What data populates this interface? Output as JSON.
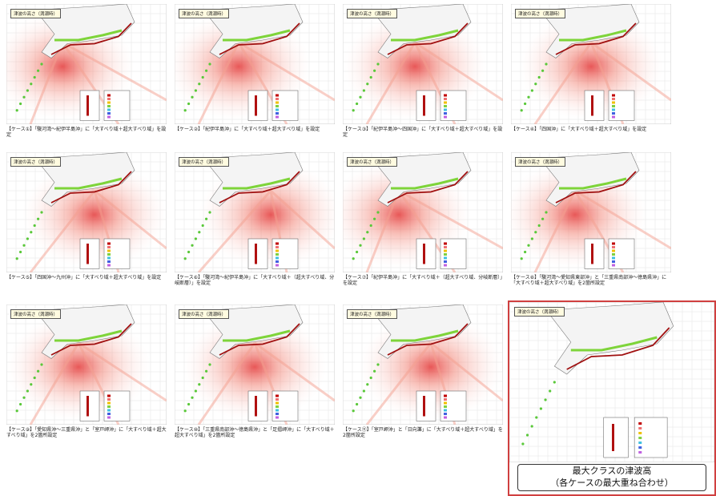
{
  "panels": [
    {
      "header": "津波の高さ（満潮時）",
      "caption": "【ケース①】「駿河湾～紀伊半島沖」に「大すべり域＋超大すべり域」を設定"
    },
    {
      "header": "津波の高さ（満潮時）",
      "caption": "【ケース②】「紀伊半島沖」に「大すべり域＋超大すべり域」を設定"
    },
    {
      "header": "津波の高さ（満潮時）",
      "caption": "【ケース③】「紀伊半島沖～四国沖」に「大すべり域＋超大すべり域」を設定"
    },
    {
      "header": "津波の高さ（満潮時）",
      "caption": "【ケース④】「四国沖」に「大すべり域＋超大すべり域」を設定"
    },
    {
      "header": "津波の高さ（満潮時）",
      "caption": "【ケース⑤】「四国沖～九州沖」に「大すべり域＋超大すべり域」を設定"
    },
    {
      "header": "津波の高さ（満潮時）",
      "caption": "【ケース⑥】「駿河湾～紀伊半島沖」に「大すべり域＋（超大すべり域、分岐断層）」を設定"
    },
    {
      "header": "津波の高さ（満潮時）",
      "caption": "【ケース⑦】「紀伊半島沖」に「大すべり域＋（超大すべり域、分岐断層）」を設定"
    },
    {
      "header": "津波の高さ（満潮時）",
      "caption": "【ケース⑧】「駿河湾～愛知県東部沖」と「三重県南部沖～徳島県沖」に「大すべり域＋超大すべり域」を2箇所設定"
    },
    {
      "header": "津波の高さ（満潮時）",
      "caption": "【ケース⑨】「愛知県沖～三重県沖」と「室戸岬沖」に「大すべり域＋超大すべり域」を2箇所設定"
    },
    {
      "header": "津波の高さ（満潮時）",
      "caption": "【ケース⑩】「三重県南部沖～徳島県沖」と「足摺岬沖」に「大すべり域＋超大すべり域」を2箇所設定"
    },
    {
      "header": "津波の高さ（満潮時）",
      "caption": "【ケース⑪】「室戸岬沖」と「日向灘」に「大すべり域＋超大すべり域」を2箇所設定"
    }
  ],
  "summary": {
    "header": "津波の高さ（満潮時）",
    "title_line1": "最大クラスの津波高",
    "title_line2": "（各ケースの最大重ね合わせ）"
  }
}
